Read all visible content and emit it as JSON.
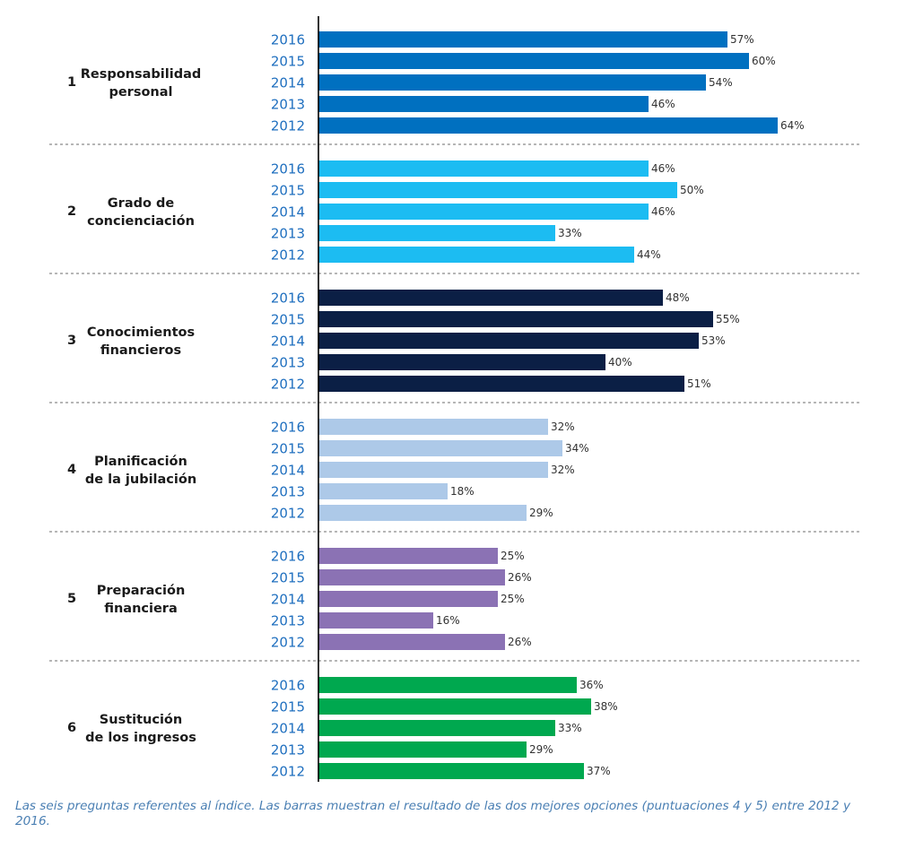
{
  "chart_data": {
    "type": "bar",
    "orientation": "horizontal",
    "categories": [
      "2016",
      "2015",
      "2014",
      "2013",
      "2012"
    ],
    "value_suffix": "%",
    "groups": [
      {
        "number": "1",
        "title_lines": [
          "Responsabilidad",
          "personal"
        ],
        "color": "#0070c0",
        "values": [
          57,
          60,
          54,
          46,
          64
        ]
      },
      {
        "number": "2",
        "title_lines": [
          "Grado de",
          "concienciación"
        ],
        "color": "#1cbcf2",
        "values": [
          46,
          50,
          46,
          33,
          44
        ]
      },
      {
        "number": "3",
        "title_lines": [
          "Conocimientos",
          "financieros"
        ],
        "color": "#0b1f45",
        "values": [
          48,
          55,
          53,
          40,
          51
        ]
      },
      {
        "number": "4",
        "title_lines": [
          "Planificación",
          "de la jubilación"
        ],
        "color": "#adc9e8",
        "values": [
          32,
          34,
          32,
          18,
          29
        ]
      },
      {
        "number": "5",
        "title_lines": [
          "Preparación",
          "financiera"
        ],
        "color": "#8b72b4",
        "values": [
          25,
          26,
          25,
          16,
          26
        ]
      },
      {
        "number": "6",
        "title_lines": [
          "Sustitución",
          "de los ingresos"
        ],
        "color": "#00a84f",
        "values": [
          36,
          38,
          33,
          29,
          37
        ]
      }
    ],
    "xlim": [
      0,
      68
    ],
    "grid": false,
    "legend": "none",
    "year_label_color": "#1f6fbf",
    "separator_color": "#8a8a8a"
  },
  "caption": "Las seis preguntas referentes al índice. Las barras muestran el resultado de las dos mejores opciones (puntuaciones 4 y 5) entre 2012 y 2016."
}
